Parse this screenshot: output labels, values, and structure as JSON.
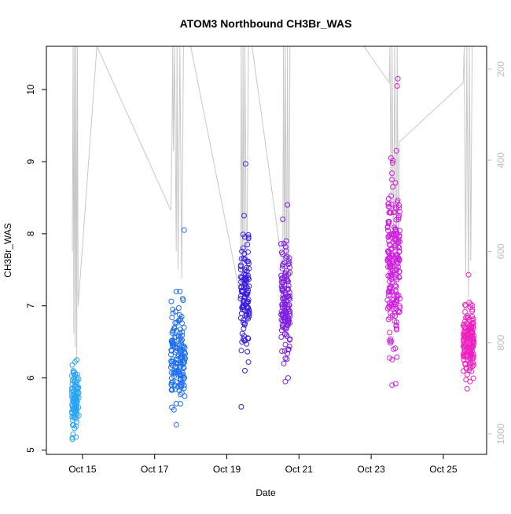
{
  "chart_data": {
    "type": "scatter",
    "title": "ATOM3 Northbound CH3Br_WAS",
    "xlabel": "Date",
    "ylabel": "CH3Br_WAS",
    "x_range_days": [
      14.0,
      26.2
    ],
    "ylim": [
      4.94,
      10.6
    ],
    "y_ticks": [
      5,
      6,
      7,
      8,
      9,
      10
    ],
    "x_ticks": [
      {
        "day": 15,
        "label": "Oct 15"
      },
      {
        "day": 17,
        "label": "Oct 17"
      },
      {
        "day": 19,
        "label": "Oct 19"
      },
      {
        "day": 21,
        "label": "Oct 21"
      },
      {
        "day": 23,
        "label": "Oct 23"
      },
      {
        "day": 25,
        "label": "Oct 25"
      }
    ],
    "y2_label_note": "",
    "y2_range": [
      1045,
      150
    ],
    "y2_ticks": [
      200,
      400,
      600,
      800,
      1000
    ],
    "grid": false,
    "legend": "none",
    "colors": {
      "flight1": "#2aa4f4",
      "flight2": "#1e6ff0",
      "flight3": "#3a1ee0",
      "flight4": "#7f1ee0",
      "flight5": "#d01ee0",
      "flight6": "#f01ec0",
      "pressure_line": "#c8c8c8",
      "axis": "#000000",
      "right_axis": "#bdbdbd"
    },
    "series": [
      {
        "values_x_day": [
          14.72,
          14.74,
          14.76,
          14.78,
          14.8,
          14.82,
          14.84,
          14.86,
          14.76,
          14.8,
          14.72,
          14.84,
          14.78,
          14.82
        ],
        "values_y": [
          5.15,
          5.22,
          5.35,
          5.48,
          5.55,
          5.62,
          5.7,
          5.8,
          5.95,
          6.05,
          6.18,
          6.25,
          5.3,
          5.18
        ],
        "color": "flight1",
        "range": [
          14.7,
          14.9,
          5.12,
          6.3
        ],
        "count": 90,
        "seed": 11
      },
      {
        "values_x_day": [
          17.82,
          17.5,
          17.55,
          17.6,
          17.7,
          17.75,
          17.78,
          17.6
        ],
        "values_y": [
          8.05,
          6.95,
          6.7,
          7.2,
          7.2,
          6.85,
          7.1,
          5.35
        ],
        "color": "flight2",
        "range": [
          17.45,
          17.85,
          5.35,
          7.25
        ],
        "count": 150,
        "seed": 23
      },
      {
        "values_x_day": [
          19.52,
          19.48,
          19.4,
          19.45,
          19.55,
          19.5,
          19.42,
          19.6
        ],
        "values_y": [
          8.97,
          8.25,
          5.6,
          7.8,
          7.35,
          6.1,
          6.5,
          6.22
        ],
        "color": "flight3",
        "range": [
          19.38,
          19.62,
          6.05,
          8.3
        ],
        "count": 110,
        "seed": 37
      },
      {
        "values_x_day": [
          20.68,
          20.55,
          20.6,
          20.65,
          20.7,
          20.62,
          20.58
        ],
        "values_y": [
          8.4,
          8.2,
          7.6,
          7.9,
          6.0,
          5.95,
          6.2
        ],
        "color": "flight4",
        "range": [
          20.5,
          20.75,
          5.95,
          8.2
        ],
        "count": 130,
        "seed": 41
      },
      {
        "values_x_day": [
          23.74,
          23.72,
          23.6,
          23.55,
          23.7,
          23.65,
          23.76,
          23.5,
          23.58,
          23.68,
          23.62
        ],
        "values_y": [
          10.15,
          10.05,
          8.65,
          9.05,
          9.15,
          8.3,
          8.2,
          7.6,
          5.9,
          5.92,
          6.4
        ],
        "color": "flight5",
        "range": [
          23.45,
          23.8,
          5.9,
          9.3
        ],
        "count": 200,
        "seed": 53
      },
      {
        "values_x_day": [
          25.7,
          25.62,
          25.8,
          25.66,
          25.74,
          25.6
        ],
        "values_y": [
          7.43,
          7.0,
          6.85,
          5.85,
          5.95,
          6.2
        ],
        "color": "flight6",
        "range": [
          25.55,
          25.85,
          5.85,
          7.25
        ],
        "count": 150,
        "seed": 67
      }
    ],
    "pressure_trace": {
      "color": "pressure_line",
      "points_day_hpa": [
        [
          14.72,
          600
        ],
        [
          14.74,
          150
        ],
        [
          14.76,
          780
        ],
        [
          14.78,
          150
        ],
        [
          14.8,
          810
        ],
        [
          14.82,
          150
        ],
        [
          14.84,
          840
        ],
        [
          14.86,
          150
        ],
        [
          14.88,
          720
        ],
        [
          15.4,
          150
        ],
        [
          17.45,
          510
        ],
        [
          17.48,
          360
        ],
        [
          17.5,
          150
        ],
        [
          17.52,
          380
        ],
        [
          17.55,
          150
        ],
        [
          17.6,
          600
        ],
        [
          17.62,
          150
        ],
        [
          17.65,
          640
        ],
        [
          17.7,
          150
        ],
        [
          17.75,
          660
        ],
        [
          17.8,
          150
        ],
        [
          18.0,
          150
        ],
        [
          19.38,
          700
        ],
        [
          19.4,
          150
        ],
        [
          19.43,
          720
        ],
        [
          19.45,
          150
        ],
        [
          19.48,
          700
        ],
        [
          19.5,
          150
        ],
        [
          19.55,
          720
        ],
        [
          19.6,
          150
        ],
        [
          19.7,
          150
        ],
        [
          20.55,
          640
        ],
        [
          20.57,
          150
        ],
        [
          20.6,
          720
        ],
        [
          20.62,
          150
        ],
        [
          20.66,
          740
        ],
        [
          20.68,
          150
        ],
        [
          20.72,
          700
        ],
        [
          20.75,
          150
        ],
        [
          22.8,
          150
        ],
        [
          23.5,
          230
        ],
        [
          23.52,
          150
        ],
        [
          23.55,
          500
        ],
        [
          23.58,
          150
        ],
        [
          23.62,
          680
        ],
        [
          23.65,
          150
        ],
        [
          23.7,
          720
        ],
        [
          23.72,
          150
        ],
        [
          23.76,
          700
        ],
        [
          23.78,
          360
        ],
        [
          25.55,
          230
        ],
        [
          25.58,
          150
        ],
        [
          25.62,
          650
        ],
        [
          25.65,
          150
        ],
        [
          25.7,
          700
        ],
        [
          25.72,
          150
        ],
        [
          25.76,
          620
        ],
        [
          25.8,
          150
        ]
      ]
    }
  }
}
